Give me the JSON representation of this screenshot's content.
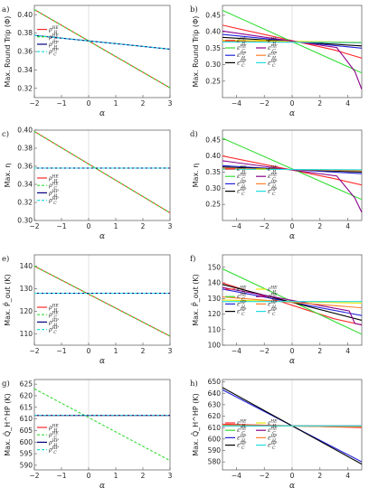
{
  "chart_data": [
    {
      "id": "a",
      "panel_label": "a)",
      "type": "line",
      "xlabel": "α",
      "ylabel": "Max. Round Trip (Φ)",
      "xlim": [
        -2,
        3
      ],
      "ylim": [
        0.31,
        0.41
      ],
      "xticks": [
        -2,
        -1,
        0,
        1,
        2,
        3
      ],
      "xtick_labels": [
        "−2",
        "−1",
        "0",
        "1",
        "2",
        "3"
      ],
      "yticks": [
        0.32,
        0.34,
        0.36,
        0.38,
        0.4
      ],
      "ytick_labels": [
        "0.32",
        "0.34",
        "0.36",
        "0.38",
        "0.40"
      ],
      "legend_position": "left",
      "legend_top": 0.28,
      "series": [
        {
          "name": "ρ_H^HE",
          "color": "#ff2a2a",
          "dash": "",
          "points": [
            [
              -2,
              0.4055
            ],
            [
              3,
              0.3205
            ]
          ]
        },
        {
          "name": "ρ_C^HE",
          "color": "#33dd33",
          "dash": "3,2",
          "points": [
            [
              -2,
              0.4055
            ],
            [
              3,
              0.3205
            ]
          ]
        },
        {
          "name": "ρ_H^HP",
          "color": "#000080",
          "dash": "",
          "points": [
            [
              -2,
              0.3775
            ],
            [
              3,
              0.3625
            ]
          ]
        },
        {
          "name": "ρ_C^HP",
          "color": "#22dddd",
          "dash": "3,2",
          "points": [
            [
              -2,
              0.3775
            ],
            [
              3,
              0.3625
            ]
          ]
        }
      ]
    },
    {
      "id": "b",
      "panel_label": "b)",
      "type": "line",
      "xlabel": "α",
      "ylabel": "Max. Round Trip (Φ)",
      "xlim": [
        -5,
        5
      ],
      "ylim": [
        0.2,
        0.48
      ],
      "xticks": [
        -4,
        -2,
        0,
        2,
        4
      ],
      "xtick_labels": [
        "−4",
        "−2",
        "0",
        "2",
        "4"
      ],
      "yticks": [
        0.25,
        0.3,
        0.35,
        0.4,
        0.45
      ],
      "ytick_labels": [
        "0.25",
        "0.30",
        "0.35",
        "0.40",
        "0.45"
      ],
      "legend_position": "left",
      "legend_top": 0.4,
      "legend_columns": 2,
      "series": [
        {
          "name": "ε_H^HE",
          "color": "#ff2a2a",
          "dash": "",
          "points": [
            [
              -5,
              0.42
            ],
            [
              3,
              0.345
            ],
            [
              5,
              0.32
            ]
          ]
        },
        {
          "name": "ε_C^HE",
          "color": "#33dd33",
          "dash": "",
          "points": [
            [
              -5,
              0.465
            ],
            [
              5,
              0.275
            ]
          ]
        },
        {
          "name": "ε_H^HP",
          "color": "#2222dd",
          "dash": "",
          "points": [
            [
              -5,
              0.392
            ],
            [
              5,
              0.35
            ]
          ]
        },
        {
          "name": "ε_C^HP",
          "color": "#000000",
          "dash": "",
          "points": [
            [
              -5,
              0.383
            ],
            [
              5,
              0.357
            ]
          ]
        },
        {
          "name": "ε_H^HE",
          "color": "#e6e600",
          "dash": "",
          "points": [
            [
              -5,
              0.374
            ],
            [
              5,
              0.368
            ]
          ]
        },
        {
          "name": "ε_C^HE",
          "color": "#8b008b",
          "dash": "",
          "points": [
            [
              -5,
              0.402
            ],
            [
              3.2,
              0.352
            ],
            [
              4.5,
              0.28
            ],
            [
              5,
              0.225
            ]
          ]
        },
        {
          "name": "ε_H^HP",
          "color": "#ff7f2a",
          "dash": "",
          "points": [
            [
              -5,
              0.372
            ],
            [
              5,
              0.366
            ]
          ]
        },
        {
          "name": "ε_C^HP",
          "color": "#22dddd",
          "dash": "",
          "points": [
            [
              -5,
              0.369
            ],
            [
              5,
              0.367
            ]
          ]
        }
      ]
    },
    {
      "id": "c",
      "panel_label": "c)",
      "type": "line",
      "xlabel": "α",
      "ylabel": "Max. η",
      "xlim": [
        -2,
        3
      ],
      "ylim": [
        0.3,
        0.4
      ],
      "xticks": [
        -2,
        -1,
        0,
        1,
        2,
        3
      ],
      "xtick_labels": [
        "−2",
        "−1",
        "0",
        "1",
        "2",
        "3"
      ],
      "yticks": [
        0.3,
        0.32,
        0.34,
        0.36,
        0.38,
        0.4
      ],
      "ytick_labels": [
        "0.30",
        "0.32",
        "0.34",
        "0.36",
        "0.38",
        "0.40"
      ],
      "legend_position": "left",
      "legend_top": 0.55,
      "series": [
        {
          "name": "ρ_H^HE",
          "color": "#ff2a2a",
          "dash": "",
          "points": [
            [
              -2,
              0.3985
            ],
            [
              3,
              0.3085
            ]
          ]
        },
        {
          "name": "ρ_C^HE",
          "color": "#33dd33",
          "dash": "3,2",
          "points": [
            [
              -2,
              0.3985
            ],
            [
              3,
              0.3085
            ]
          ]
        },
        {
          "name": "ρ_H^HP",
          "color": "#000080",
          "dash": "",
          "points": [
            [
              -2,
              0.358
            ],
            [
              3,
              0.358
            ]
          ]
        },
        {
          "name": "ρ_C^HP",
          "color": "#22dddd",
          "dash": "3,2",
          "points": [
            [
              -2,
              0.358
            ],
            [
              3,
              0.358
            ]
          ]
        }
      ]
    },
    {
      "id": "d",
      "panel_label": "d)",
      "type": "line",
      "xlabel": "α",
      "ylabel": "Max. η",
      "xlim": [
        -5,
        5
      ],
      "ylim": [
        0.2,
        0.48
      ],
      "xticks": [
        -4,
        -2,
        0,
        2,
        4
      ],
      "xtick_labels": [
        "−4",
        "−2",
        "0",
        "2",
        "4"
      ],
      "yticks": [
        0.25,
        0.3,
        0.35,
        0.4,
        0.45
      ],
      "ytick_labels": [
        "0.25",
        "0.30",
        "0.35",
        "0.40",
        "0.45"
      ],
      "legend_position": "left",
      "legend_top": 0.45,
      "legend_columns": 2,
      "series": [
        {
          "name": "ε_H^HE",
          "color": "#ff2a2a",
          "dash": "",
          "points": [
            [
              -5,
              0.4
            ],
            [
              3,
              0.33
            ],
            [
              5,
              0.31
            ]
          ]
        },
        {
          "name": "ε_C^HE",
          "color": "#33dd33",
          "dash": "",
          "points": [
            [
              -5,
              0.455
            ],
            [
              5,
              0.265
            ]
          ]
        },
        {
          "name": "ε_H^HP",
          "color": "#2222dd",
          "dash": "",
          "points": [
            [
              -5,
              0.37
            ],
            [
              5,
              0.345
            ]
          ]
        },
        {
          "name": "ε_C^HP",
          "color": "#000000",
          "dash": "",
          "points": [
            [
              -5,
              0.366
            ],
            [
              5,
              0.35
            ]
          ]
        },
        {
          "name": "ε_H^HE",
          "color": "#e6e600",
          "dash": "",
          "points": [
            [
              -5,
              0.36
            ],
            [
              5,
              0.356
            ]
          ]
        },
        {
          "name": "ε_C^HE",
          "color": "#8b008b",
          "dash": "",
          "points": [
            [
              -5,
              0.385
            ],
            [
              3.2,
              0.338
            ],
            [
              4.5,
              0.27
            ],
            [
              5,
              0.225
            ]
          ]
        },
        {
          "name": "ε_H^HP",
          "color": "#ff7f2a",
          "dash": "",
          "points": [
            [
              -5,
              0.362
            ],
            [
              5,
              0.354
            ]
          ]
        },
        {
          "name": "ε_C^HP",
          "color": "#22dddd",
          "dash": "",
          "points": [
            [
              -5,
              0.359
            ],
            [
              5,
              0.357
            ]
          ]
        }
      ]
    },
    {
      "id": "e",
      "panel_label": "e)",
      "type": "line",
      "xlabel": "α",
      "ylabel": "Max. P̄_out (K)",
      "xlim": [
        -2,
        3
      ],
      "ylim": [
        105,
        145
      ],
      "xticks": [
        -2,
        -1,
        0,
        1,
        2,
        3
      ],
      "xtick_labels": [
        "−2",
        "−1",
        "0",
        "1",
        "2",
        "3"
      ],
      "yticks": [
        110,
        120,
        130,
        140
      ],
      "ytick_labels": [
        "110",
        "120",
        "130",
        "140"
      ],
      "legend_position": "left",
      "legend_top": 0.6,
      "series": [
        {
          "name": "ρ_H^HE",
          "color": "#ff2a2a",
          "dash": "",
          "points": [
            [
              -2,
              140
            ],
            [
              3,
              109
            ]
          ]
        },
        {
          "name": "ρ_C^HE",
          "color": "#33dd33",
          "dash": "3,2",
          "points": [
            [
              -2,
              140
            ],
            [
              3,
              109
            ]
          ]
        },
        {
          "name": "ρ_H^HP",
          "color": "#000080",
          "dash": "",
          "points": [
            [
              -2,
              128
            ],
            [
              3,
              128
            ]
          ]
        },
        {
          "name": "ρ_C^HP",
          "color": "#22dddd",
          "dash": "3,2",
          "points": [
            [
              -2,
              128
            ],
            [
              3,
              128
            ]
          ]
        }
      ]
    },
    {
      "id": "f",
      "panel_label": "f)",
      "type": "line",
      "xlabel": "α",
      "ylabel": "Max. P̄_out (K)",
      "xlim": [
        -5,
        5
      ],
      "ylim": [
        100,
        158
      ],
      "xticks": [
        -4,
        -2,
        0,
        2,
        4
      ],
      "xtick_labels": [
        "−4",
        "−2",
        "0",
        "2",
        "4"
      ],
      "yticks": [
        100,
        110,
        120,
        130,
        140,
        150
      ],
      "ytick_labels": [
        "100",
        "110",
        "120",
        "130",
        "140",
        "150"
      ],
      "legend_position": "left",
      "legend_top": 0.4,
      "legend_columns": 2,
      "series": [
        {
          "name": "ε_H^HE",
          "color": "#ff2a2a",
          "dash": "",
          "points": [
            [
              -5,
              140
            ],
            [
              3,
              117
            ],
            [
              5,
              113
            ]
          ]
        },
        {
          "name": "ε_C^HE",
          "color": "#33dd33",
          "dash": "",
          "points": [
            [
              -5,
              149
            ],
            [
              5,
              107
            ]
          ]
        },
        {
          "name": "ε_H^HP",
          "color": "#2222dd",
          "dash": "",
          "points": [
            [
              -5,
              136
            ],
            [
              5,
              119
            ]
          ]
        },
        {
          "name": "ε_C^HP",
          "color": "#000000",
          "dash": "",
          "points": [
            [
              -5,
              139
            ],
            [
              5,
              116
            ]
          ]
        },
        {
          "name": "ε_H^HE",
          "color": "#e6e600",
          "dash": "",
          "points": [
            [
              -5,
              129
            ],
            [
              5,
              127
            ]
          ]
        },
        {
          "name": "ε_C^HE",
          "color": "#8b008b",
          "dash": "",
          "points": [
            [
              -5,
              137
            ],
            [
              4.1,
              122
            ],
            [
              4.5,
              114
            ],
            [
              5,
              113
            ]
          ]
        },
        {
          "name": "ε_H^HP",
          "color": "#ff7f2a",
          "dash": "",
          "points": [
            [
              -5,
              131
            ],
            [
              5,
              124
            ]
          ]
        },
        {
          "name": "ε_C^HP",
          "color": "#22dddd",
          "dash": "",
          "points": [
            [
              -5,
              128
            ],
            [
              5,
              128
            ]
          ]
        }
      ]
    },
    {
      "id": "g",
      "panel_label": "g)",
      "type": "line",
      "xlabel": "α",
      "ylabel": "Max. Q̄_H^HP (K)",
      "xlim": [
        -2,
        3
      ],
      "ylim": [
        588,
        627
      ],
      "xticks": [
        -2,
        -1,
        0,
        1,
        2,
        3
      ],
      "xtick_labels": [
        "−2",
        "−1",
        "0",
        "1",
        "2",
        "3"
      ],
      "yticks": [
        590,
        595,
        600,
        605,
        610,
        615,
        620,
        625
      ],
      "ytick_labels": [
        "590",
        "595",
        "600",
        "605",
        "610",
        "615",
        "620",
        "625"
      ],
      "legend_position": "left",
      "legend_top": 0.55,
      "series": [
        {
          "name": "ρ_H^HE",
          "color": "#ff2a2a",
          "dash": "",
          "points": [
            [
              -2,
              611.5
            ],
            [
              3,
              611.5
            ]
          ]
        },
        {
          "name": "ρ_C^HE",
          "color": "#33dd33",
          "dash": "3,2",
          "points": [
            [
              -2,
              623
            ],
            [
              3,
              592
            ]
          ]
        },
        {
          "name": "ρ_H^HP",
          "color": "#000080",
          "dash": "",
          "points": [
            [
              -2,
              611.5
            ],
            [
              3,
              611.5
            ]
          ]
        },
        {
          "name": "ρ_C^HP",
          "color": "#22dddd",
          "dash": "3,2",
          "points": [
            [
              -2,
              611.5
            ],
            [
              3,
              611.5
            ]
          ]
        }
      ]
    },
    {
      "id": "h",
      "panel_label": "h)",
      "type": "line",
      "xlabel": "α",
      "ylabel": "Max. Q̄_H^HP (K)",
      "xlim": [
        -5,
        5
      ],
      "ylim": [
        573,
        652
      ],
      "xticks": [
        -4,
        -2,
        0,
        2,
        4
      ],
      "xtick_labels": [
        "−4",
        "−2",
        "0",
        "2",
        "4"
      ],
      "yticks": [
        580,
        590,
        600,
        610,
        620,
        630,
        640,
        650
      ],
      "ytick_labels": [
        "580",
        "590",
        "600",
        "610",
        "620",
        "630",
        "640",
        "650"
      ],
      "legend_position": "left",
      "legend_top": 0.5,
      "legend_columns": 2,
      "series": [
        {
          "name": "ε_H^HE",
          "color": "#ff2a2a",
          "dash": "",
          "points": [
            [
              -5,
              613
            ],
            [
              5,
              610
            ]
          ]
        },
        {
          "name": "ε_C^HE",
          "color": "#33dd33",
          "dash": "",
          "points": [
            [
              -5,
              612
            ],
            [
              5,
              611
            ]
          ]
        },
        {
          "name": "ε_H^HP",
          "color": "#2222dd",
          "dash": "",
          "points": [
            [
              -5,
              643
            ],
            [
              5,
              580
            ]
          ]
        },
        {
          "name": "ε_C^HP",
          "color": "#000000",
          "dash": "",
          "points": [
            [
              -5,
              645
            ],
            [
              5,
              578
            ]
          ]
        },
        {
          "name": "ε_H^HE",
          "color": "#e6e600",
          "dash": "",
          "points": [
            [
              -5,
              611.5
            ],
            [
              5,
              611.5
            ]
          ]
        },
        {
          "name": "ε_C^HE",
          "color": "#8b008b",
          "dash": "",
          "points": [
            [
              -5,
              611.5
            ],
            [
              5,
              611.5
            ]
          ]
        },
        {
          "name": "ε_H^HP",
          "color": "#ff7f2a",
          "dash": "",
          "points": [
            [
              -5,
              612
            ],
            [
              5,
              610.5
            ]
          ]
        },
        {
          "name": "ε_C^HP",
          "color": "#22dddd",
          "dash": "",
          "points": [
            [
              -5,
              611.5
            ],
            [
              5,
              611.5
            ]
          ]
        }
      ]
    }
  ]
}
